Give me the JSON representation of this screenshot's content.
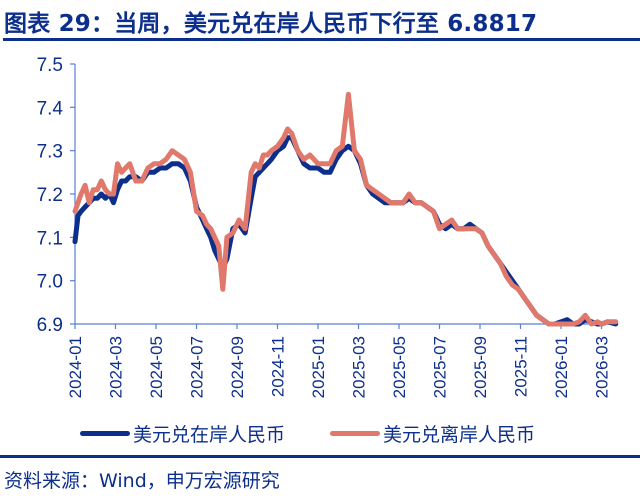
{
  "title": "图表 29：当周，美元兑在岸人民币下行至 6.8817",
  "source": "资料来源：Wind，申万宏源研究",
  "colors": {
    "onshore": "#0d2f8c",
    "offshore": "#e0796b",
    "axis": "#5b7fd6",
    "text": "#0d2f8c"
  },
  "chart_data": {
    "type": "line",
    "title": "当周，美元兑在岸人民币下行至 6.8817",
    "xlabel": "",
    "ylabel": "",
    "ylim": [
      6.9,
      7.5
    ],
    "yticks": [
      "7.5",
      "7.4",
      "7.3",
      "7.2",
      "7.1",
      "7.0",
      "6.9"
    ],
    "xticks": [
      "2024-01",
      "2024-03",
      "2024-05",
      "2024-07",
      "2024-09",
      "2024-11",
      "2025-01",
      "2025-03",
      "2025-05",
      "2025-07",
      "2025-09",
      "2025-11",
      "2026-01",
      "2026-03"
    ],
    "grid": false,
    "legend_position": "bottom",
    "x_unit": "months since 2024-01",
    "series": [
      {
        "name": "美元兑在岸人民币",
        "color": "#0d2f8c",
        "x": [
          0,
          0.15,
          0.3,
          0.5,
          0.7,
          0.9,
          1.1,
          1.3,
          1.5,
          1.7,
          1.9,
          2.1,
          2.3,
          2.5,
          2.7,
          3.0,
          3.3,
          3.6,
          3.9,
          4.2,
          4.5,
          4.8,
          5.1,
          5.4,
          5.7,
          6.0,
          6.3,
          6.5,
          6.7,
          6.9,
          7.1,
          7.3,
          7.5,
          7.8,
          8.1,
          8.4,
          8.7,
          8.9,
          9.1,
          9.3,
          9.5,
          9.7,
          10.0,
          10.3,
          10.5,
          10.7,
          11.0,
          11.3,
          11.6,
          12.0,
          12.3,
          12.6,
          12.9,
          13.2,
          13.5,
          13.8,
          14.1,
          14.4,
          14.7,
          15.0,
          15.3,
          15.6,
          15.9,
          16.2,
          16.5,
          16.8,
          17.1,
          17.4,
          17.7,
          18.0,
          18.3,
          18.6,
          18.9,
          19.2,
          19.5,
          19.8,
          20.1,
          20.4,
          20.7,
          21.0,
          21.3,
          21.6,
          21.9,
          22.2,
          22.5,
          22.8,
          23.1,
          23.4,
          23.7,
          24.0,
          24.3,
          24.6,
          24.9,
          25.2,
          25.5,
          25.8,
          26.0,
          26.3,
          26.7
        ],
        "values": [
          7.09,
          7.15,
          7.16,
          7.17,
          7.18,
          7.19,
          7.19,
          7.2,
          7.19,
          7.2,
          7.18,
          7.21,
          7.23,
          7.23,
          7.24,
          7.24,
          7.23,
          7.25,
          7.25,
          7.26,
          7.26,
          7.27,
          7.27,
          7.26,
          7.23,
          7.17,
          7.14,
          7.12,
          7.1,
          7.07,
          7.05,
          7.03,
          7.05,
          7.12,
          7.13,
          7.11,
          7.19,
          7.24,
          7.25,
          7.26,
          7.27,
          7.28,
          7.3,
          7.31,
          7.33,
          7.33,
          7.3,
          7.27,
          7.26,
          7.26,
          7.25,
          7.25,
          7.28,
          7.3,
          7.31,
          7.3,
          7.27,
          7.22,
          7.2,
          7.19,
          7.18,
          7.18,
          7.18,
          7.18,
          7.19,
          7.18,
          7.18,
          7.17,
          7.16,
          7.13,
          7.12,
          7.13,
          7.12,
          7.12,
          7.13,
          7.12,
          7.11,
          7.08,
          7.06,
          7.04,
          7.02,
          7.0,
          6.98,
          6.96,
          6.94,
          6.92,
          6.91,
          6.9,
          6.9,
          6.905,
          6.91,
          6.9,
          6.9,
          6.91,
          6.905,
          6.9,
          6.9,
          6.905,
          6.9
        ]
      },
      {
        "name": "美元兑离岸人民币",
        "color": "#e0796b",
        "x": [
          0,
          0.15,
          0.3,
          0.5,
          0.7,
          0.9,
          1.1,
          1.3,
          1.5,
          1.7,
          1.9,
          2.1,
          2.3,
          2.5,
          2.7,
          3.0,
          3.3,
          3.6,
          3.9,
          4.2,
          4.5,
          4.8,
          5.1,
          5.4,
          5.7,
          6.0,
          6.3,
          6.5,
          6.7,
          6.9,
          7.1,
          7.3,
          7.5,
          7.8,
          8.1,
          8.4,
          8.7,
          8.9,
          9.1,
          9.3,
          9.5,
          9.7,
          10.0,
          10.3,
          10.5,
          10.7,
          11.0,
          11.3,
          11.6,
          12.0,
          12.3,
          12.6,
          12.9,
          13.2,
          13.5,
          13.8,
          14.1,
          14.4,
          14.7,
          15.0,
          15.3,
          15.6,
          15.9,
          16.2,
          16.5,
          16.8,
          17.1,
          17.4,
          17.7,
          18.0,
          18.3,
          18.6,
          18.9,
          19.2,
          19.5,
          19.8,
          20.1,
          20.4,
          20.7,
          21.0,
          21.3,
          21.6,
          21.9,
          22.2,
          22.5,
          22.8,
          23.1,
          23.4,
          23.7,
          24.0,
          24.3,
          24.6,
          24.9,
          25.2,
          25.5,
          25.8,
          26.0,
          26.3,
          26.7
        ],
        "values": [
          7.16,
          7.18,
          7.2,
          7.22,
          7.18,
          7.21,
          7.21,
          7.23,
          7.21,
          7.2,
          7.2,
          7.27,
          7.25,
          7.26,
          7.27,
          7.23,
          7.23,
          7.26,
          7.27,
          7.27,
          7.28,
          7.3,
          7.29,
          7.28,
          7.25,
          7.16,
          7.15,
          7.13,
          7.12,
          7.1,
          7.08,
          6.98,
          7.1,
          7.11,
          7.14,
          7.12,
          7.25,
          7.27,
          7.26,
          7.29,
          7.29,
          7.3,
          7.31,
          7.33,
          7.35,
          7.34,
          7.3,
          7.28,
          7.29,
          7.27,
          7.27,
          7.27,
          7.3,
          7.31,
          7.43,
          7.3,
          7.28,
          7.22,
          7.21,
          7.2,
          7.19,
          7.18,
          7.18,
          7.18,
          7.2,
          7.18,
          7.18,
          7.17,
          7.16,
          7.12,
          7.13,
          7.14,
          7.12,
          7.12,
          7.12,
          7.12,
          7.11,
          7.08,
          7.06,
          7.04,
          7.01,
          6.99,
          6.98,
          6.96,
          6.94,
          6.92,
          6.91,
          6.9,
          6.9,
          6.9,
          6.9,
          6.9,
          6.905,
          6.92,
          6.9,
          6.905,
          6.9,
          6.905,
          6.905
        ]
      }
    ]
  },
  "legend": {
    "items": [
      {
        "label": "美元兑在岸人民币",
        "color": "#0d2f8c"
      },
      {
        "label": "美元兑离岸人民币",
        "color": "#e0796b"
      }
    ]
  }
}
